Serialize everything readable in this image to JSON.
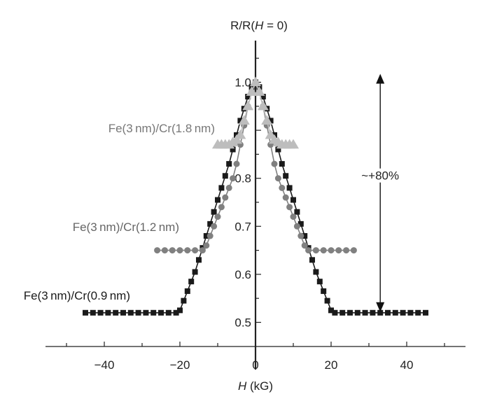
{
  "chart_data": {
    "type": "line",
    "ylabel_prefix": "R/R(",
    "ylabel_var": "H",
    "ylabel_suffix": " = 0)",
    "xlabel_var": "H",
    "xlabel_unit": " (kG)",
    "x_ticks": [
      "−40",
      "−20",
      "0",
      "20",
      "40"
    ],
    "x_tick_values": [
      -40,
      -20,
      0,
      20,
      40
    ],
    "y_ticks": [
      "0.5",
      "0.6",
      "0.7",
      "0.8",
      "1.0"
    ],
    "y_tick_values": [
      0.5,
      0.6,
      0.7,
      0.8,
      1.0
    ],
    "xlim": [
      -55,
      55
    ],
    "ylim": [
      0.45,
      1.1
    ],
    "annotation": "~+80%",
    "annotation_arrow": {
      "x": 33,
      "y_from": 0.52,
      "y_to": 1.0
    },
    "series": [
      {
        "name": "Fe(3 nm)/Cr(0.9 nm)",
        "color": "#1a1a1a",
        "marker": "square",
        "x": [
          -45,
          -43,
          -41,
          -39,
          -37,
          -35,
          -33,
          -31,
          -29,
          -27,
          -25,
          -23,
          -21,
          -20,
          -19,
          -18,
          -17,
          -16,
          -15,
          -14,
          -13,
          -12,
          -11,
          -10,
          -9,
          -8,
          -7,
          -6,
          -5,
          -4,
          -3,
          -2,
          -1,
          0,
          1,
          2,
          3,
          4,
          5,
          6,
          7,
          8,
          9,
          10,
          11,
          12,
          13,
          14,
          15,
          16,
          17,
          18,
          19,
          20,
          21,
          23,
          25,
          27,
          29,
          31,
          33,
          35,
          37,
          39,
          41,
          43,
          45
        ],
        "y": [
          0.52,
          0.52,
          0.52,
          0.52,
          0.52,
          0.52,
          0.52,
          0.52,
          0.52,
          0.52,
          0.52,
          0.52,
          0.52,
          0.525,
          0.545,
          0.565,
          0.585,
          0.605,
          0.63,
          0.655,
          0.68,
          0.705,
          0.73,
          0.755,
          0.78,
          0.805,
          0.83,
          0.86,
          0.89,
          0.92,
          0.945,
          0.97,
          0.99,
          1.0,
          0.99,
          0.97,
          0.945,
          0.92,
          0.89,
          0.86,
          0.83,
          0.805,
          0.78,
          0.755,
          0.73,
          0.705,
          0.68,
          0.655,
          0.63,
          0.605,
          0.585,
          0.565,
          0.545,
          0.525,
          0.52,
          0.52,
          0.52,
          0.52,
          0.52,
          0.52,
          0.52,
          0.52,
          0.52,
          0.52,
          0.52,
          0.52,
          0.52
        ]
      },
      {
        "name": "Fe(3 nm)/Cr(1.2 nm)",
        "color": "#808080",
        "marker": "circle",
        "x": [
          -26,
          -24,
          -22,
          -20,
          -18,
          -16,
          -14,
          -13,
          -12,
          -11,
          -10,
          -9,
          -8,
          -7,
          -6,
          -5,
          -4,
          -3,
          -2,
          -1,
          0,
          1,
          2,
          3,
          4,
          5,
          6,
          7,
          8,
          9,
          10,
          11,
          12,
          13,
          14,
          16,
          18,
          20,
          22,
          24,
          26
        ],
        "y": [
          0.65,
          0.65,
          0.65,
          0.65,
          0.65,
          0.65,
          0.65,
          0.66,
          0.68,
          0.7,
          0.72,
          0.74,
          0.76,
          0.78,
          0.8,
          0.83,
          0.87,
          0.91,
          0.95,
          0.98,
          1.0,
          0.98,
          0.95,
          0.91,
          0.87,
          0.83,
          0.8,
          0.78,
          0.76,
          0.74,
          0.72,
          0.7,
          0.68,
          0.66,
          0.65,
          0.65,
          0.65,
          0.65,
          0.65,
          0.65,
          0.65
        ]
      },
      {
        "name": "Fe(3 nm)/Cr(1.8 nm)",
        "color": "#bdbdbd",
        "marker": "triangle",
        "x": [
          -10,
          -9,
          -8,
          -7,
          -6,
          -5,
          -4,
          -3,
          -2,
          -1,
          0,
          1,
          2,
          3,
          4,
          5,
          6,
          7,
          8,
          9,
          10
        ],
        "y": [
          0.87,
          0.87,
          0.87,
          0.87,
          0.875,
          0.88,
          0.89,
          0.92,
          0.95,
          0.98,
          1.0,
          0.98,
          0.95,
          0.92,
          0.89,
          0.88,
          0.875,
          0.87,
          0.87,
          0.87,
          0.87
        ]
      }
    ]
  }
}
